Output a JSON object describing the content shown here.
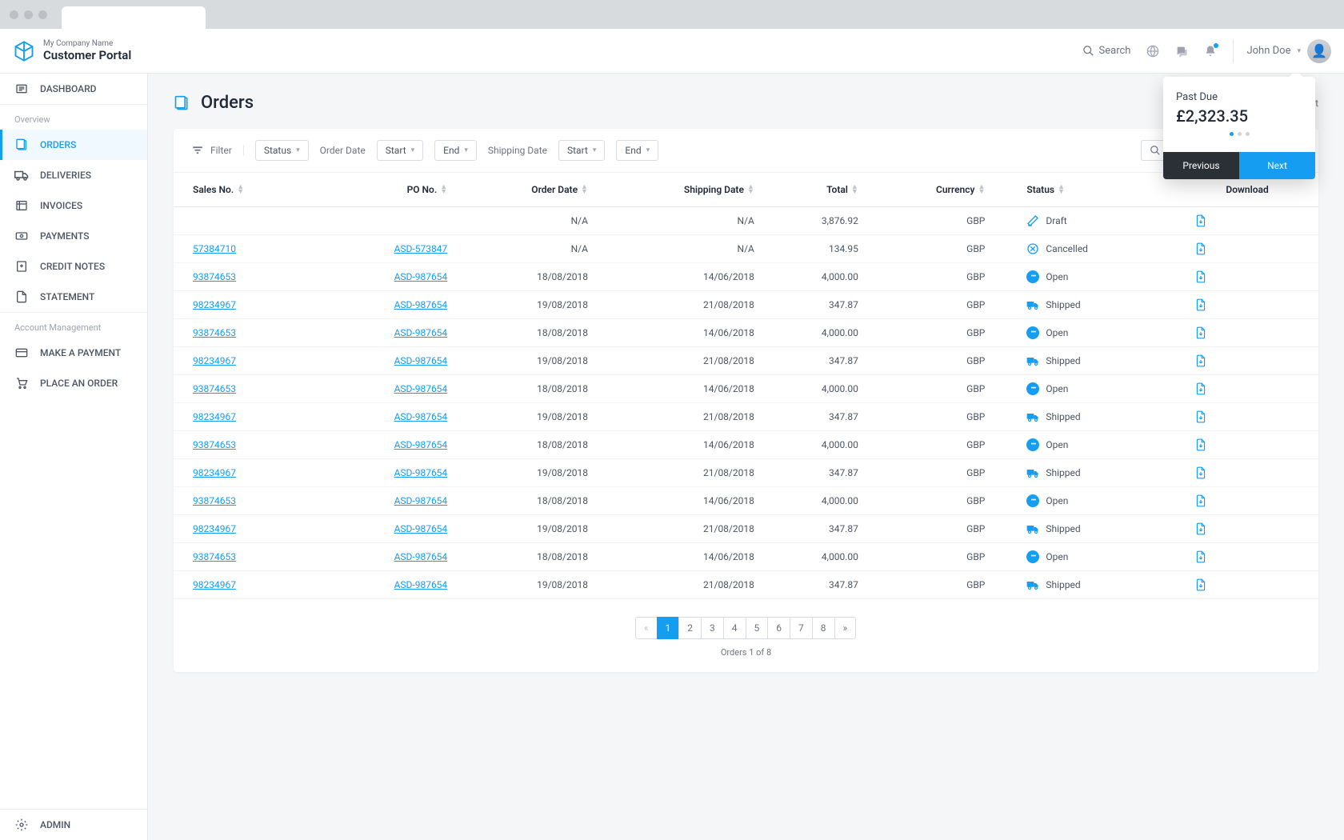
{
  "header": {
    "company": "My Company Name",
    "portal": "Customer Portal",
    "search_label": "Search",
    "user_name": "John Doe"
  },
  "sidebar": {
    "dashboard": "DASHBOARD",
    "section_overview": "Overview",
    "orders": "ORDERS",
    "deliveries": "DELIVERIES",
    "invoices": "INVOICES",
    "payments": "PAYMENTS",
    "credit_notes": "CREDIT NOTES",
    "statement": "STATEMENT",
    "section_account": "Account Management",
    "make_payment": "MAKE A PAYMENT",
    "place_order": "PLACE AN ORDER",
    "admin": "ADMIN"
  },
  "page": {
    "title": "Orders",
    "print": "rint"
  },
  "filters": {
    "filter": "Filter",
    "status": "Status",
    "order_date": "Order Date",
    "start": "Start",
    "end": "End",
    "shipping_date": "Shipping Date",
    "search_placeholder": "Search"
  },
  "table": {
    "columns": {
      "sales_no": "Sales No.",
      "po_no": "PO No.",
      "order_date": "Order Date",
      "shipping_date": "Shipping Date",
      "total": "Total",
      "currency": "Currency",
      "status": "Status",
      "download": "Download"
    },
    "rows": [
      {
        "sales_no": "",
        "po_no": "",
        "order_date": "N/A",
        "shipping_date": "N/A",
        "total": "3,876.92",
        "currency": "GBP",
        "status": "Draft"
      },
      {
        "sales_no": "57384710",
        "po_no": "ASD-573847",
        "order_date": "N/A",
        "shipping_date": "N/A",
        "total": "134.95",
        "currency": "GBP",
        "status": "Cancelled"
      },
      {
        "sales_no": "93874653",
        "po_no": "ASD-987654",
        "order_date": "18/08/2018",
        "shipping_date": "14/06/2018",
        "total": "4,000.00",
        "currency": "GBP",
        "status": "Open"
      },
      {
        "sales_no": "98234967",
        "po_no": "ASD-987654",
        "order_date": "19/08/2018",
        "shipping_date": "21/08/2018",
        "total": "347.87",
        "currency": "GBP",
        "status": "Shipped"
      },
      {
        "sales_no": "93874653",
        "po_no": "ASD-987654",
        "order_date": "18/08/2018",
        "shipping_date": "14/06/2018",
        "total": "4,000.00",
        "currency": "GBP",
        "status": "Open"
      },
      {
        "sales_no": "98234967",
        "po_no": "ASD-987654",
        "order_date": "19/08/2018",
        "shipping_date": "21/08/2018",
        "total": "347.87",
        "currency": "GBP",
        "status": "Shipped"
      },
      {
        "sales_no": "93874653",
        "po_no": "ASD-987654",
        "order_date": "18/08/2018",
        "shipping_date": "14/06/2018",
        "total": "4,000.00",
        "currency": "GBP",
        "status": "Open"
      },
      {
        "sales_no": "98234967",
        "po_no": "ASD-987654",
        "order_date": "19/08/2018",
        "shipping_date": "21/08/2018",
        "total": "347.87",
        "currency": "GBP",
        "status": "Shipped"
      },
      {
        "sales_no": "93874653",
        "po_no": "ASD-987654",
        "order_date": "18/08/2018",
        "shipping_date": "14/06/2018",
        "total": "4,000.00",
        "currency": "GBP",
        "status": "Open"
      },
      {
        "sales_no": "98234967",
        "po_no": "ASD-987654",
        "order_date": "19/08/2018",
        "shipping_date": "21/08/2018",
        "total": "347.87",
        "currency": "GBP",
        "status": "Shipped"
      },
      {
        "sales_no": "93874653",
        "po_no": "ASD-987654",
        "order_date": "18/08/2018",
        "shipping_date": "14/06/2018",
        "total": "4,000.00",
        "currency": "GBP",
        "status": "Open"
      },
      {
        "sales_no": "98234967",
        "po_no": "ASD-987654",
        "order_date": "19/08/2018",
        "shipping_date": "21/08/2018",
        "total": "347.87",
        "currency": "GBP",
        "status": "Shipped"
      },
      {
        "sales_no": "93874653",
        "po_no": "ASD-987654",
        "order_date": "18/08/2018",
        "shipping_date": "14/06/2018",
        "total": "4,000.00",
        "currency": "GBP",
        "status": "Open"
      },
      {
        "sales_no": "98234967",
        "po_no": "ASD-987654",
        "order_date": "19/08/2018",
        "shipping_date": "21/08/2018",
        "total": "347.87",
        "currency": "GBP",
        "status": "Shipped"
      }
    ]
  },
  "pagination": {
    "pages": [
      "1",
      "2",
      "3",
      "4",
      "5",
      "6",
      "7",
      "8"
    ],
    "active": 0,
    "info": "Orders 1 of 8"
  },
  "popover": {
    "title": "Past Due",
    "amount": "£2,323.35",
    "prev": "Previous",
    "next": "Next",
    "active_dot": 0,
    "dot_count": 3
  },
  "colors": {
    "primary": "#159df1",
    "text": "#4b5563",
    "border": "#e5e7ea"
  }
}
